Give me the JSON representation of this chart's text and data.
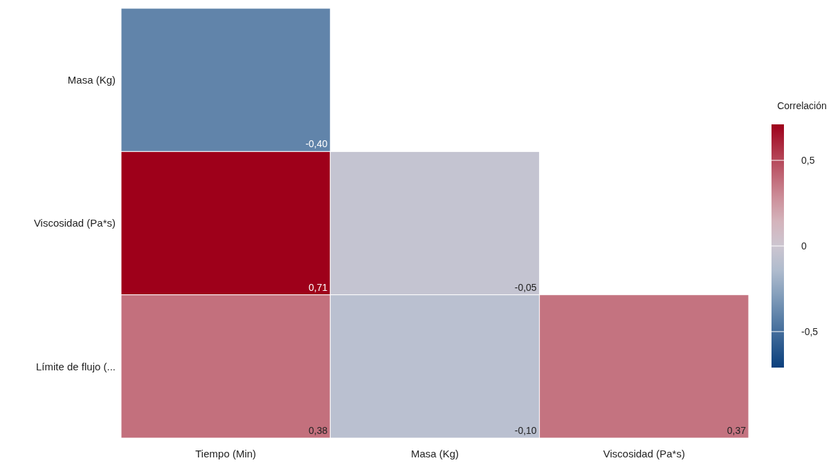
{
  "chart_data": {
    "type": "heatmap",
    "categories": [
      "Tiempo (Min)",
      "Masa (Kg)",
      "Viscosidad (Pa*s)"
    ],
    "y_categories": [
      "Masa (Kg)",
      "Viscosidad (Pa*s)",
      "Límite de flujo (..."
    ],
    "cells": [
      [
        -0.4,
        null,
        null
      ],
      [
        0.71,
        -0.05,
        null
      ],
      [
        0.38,
        -0.1,
        0.37
      ]
    ],
    "cell_labels": [
      [
        "-0,40",
        null,
        null
      ],
      [
        "0,71",
        "-0,05",
        null
      ],
      [
        "0,38",
        "-0,10",
        "0,37"
      ]
    ],
    "clabel": "Correlación",
    "clim": [
      -0.71,
      0.71
    ],
    "cticks": [
      {
        "value": -0.5,
        "label": "-0,5"
      },
      {
        "value": 0,
        "label": "0"
      },
      {
        "value": 0.5,
        "label": "0,5"
      }
    ]
  }
}
